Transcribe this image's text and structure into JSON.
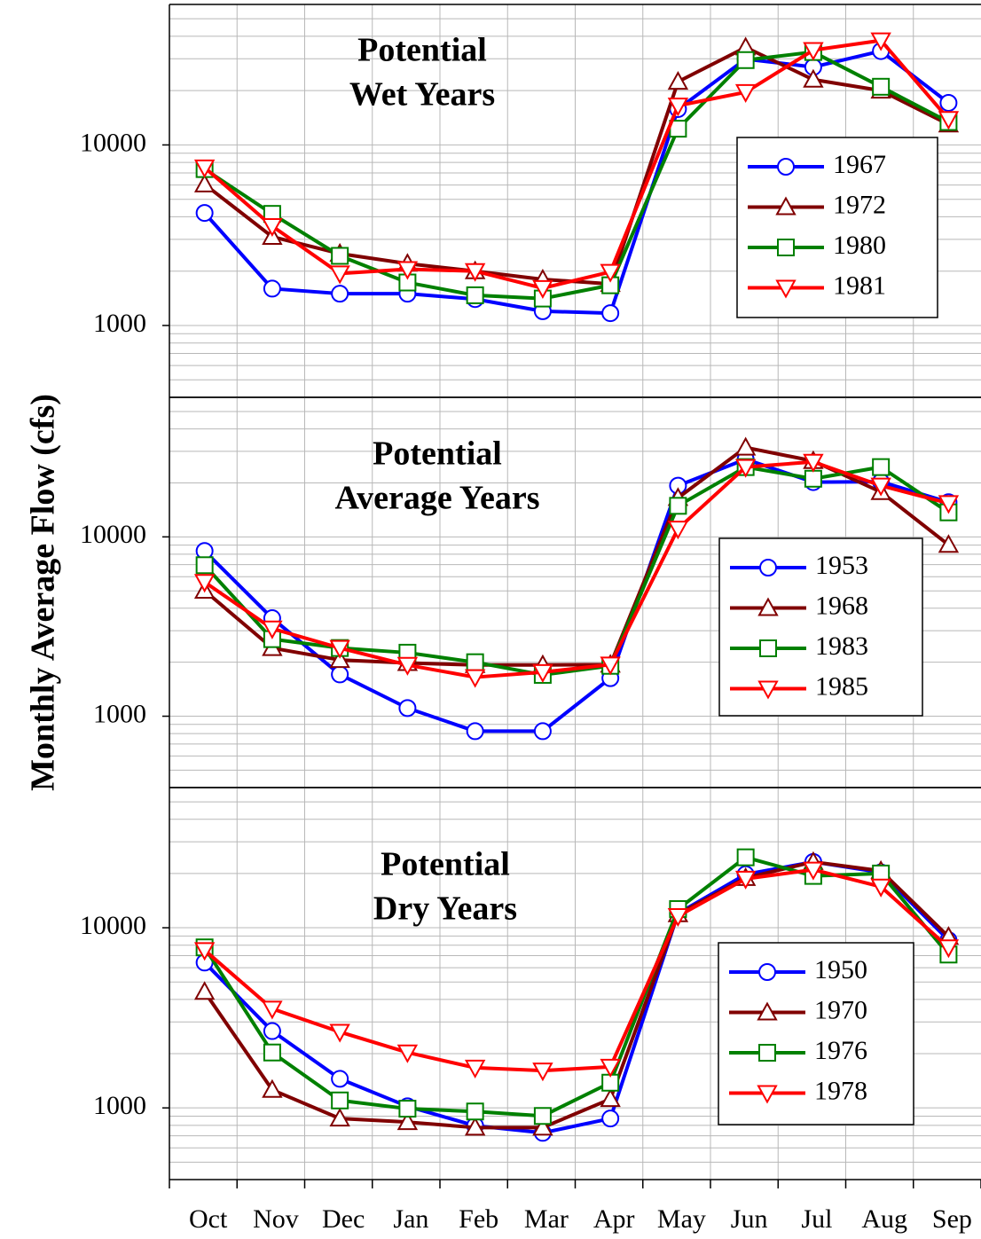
{
  "y_label": "Monthly Average Flow (cfs)",
  "chart_data": [
    {
      "type": "line",
      "title": [
        "Potential",
        "Wet Years"
      ],
      "log_scale": true,
      "grid": true,
      "ylim": [
        400,
        60000
      ],
      "yticks": [
        1000,
        10000
      ],
      "minor_yticks": [
        400,
        500,
        600,
        700,
        800,
        900,
        2000,
        3000,
        4000,
        5000,
        6000,
        7000,
        8000,
        9000,
        20000,
        30000,
        40000,
        50000
      ],
      "series": [
        {
          "name": "1967",
          "color": "#0000ff",
          "marker": "circle",
          "values": [
            4200,
            1600,
            1500,
            1500,
            1400,
            1200,
            1170,
            15800,
            29900,
            27000,
            33100,
            17100
          ]
        },
        {
          "name": "1972",
          "color": "#800000",
          "marker": "triangle-up",
          "values": [
            6050,
            3100,
            2500,
            2200,
            2000,
            1800,
            1700,
            22400,
            34700,
            23000,
            20000,
            13000
          ]
        },
        {
          "name": "1980",
          "color": "#008000",
          "marker": "square",
          "values": [
            7350,
            4150,
            2430,
            1730,
            1470,
            1410,
            1670,
            12300,
            29500,
            32700,
            21000,
            13400
          ]
        },
        {
          "name": "1981",
          "color": "#ff0000",
          "marker": "triangle-down",
          "values": [
            7500,
            3550,
            1940,
            2050,
            2000,
            1610,
            1980,
            16500,
            19600,
            33500,
            37900,
            13900
          ]
        }
      ]
    },
    {
      "type": "line",
      "title": [
        "Potential",
        "Average Years"
      ],
      "log_scale": true,
      "grid": true,
      "ylim": [
        400,
        60000
      ],
      "yticks": [
        1000,
        10000
      ],
      "minor_yticks": [
        400,
        500,
        600,
        700,
        800,
        900,
        2000,
        3000,
        4000,
        5000,
        6000,
        7000,
        8000,
        9000,
        20000,
        30000,
        40000,
        50000
      ],
      "series": [
        {
          "name": "1953",
          "color": "#0000ff",
          "marker": "circle",
          "values": [
            8340,
            3520,
            1710,
            1110,
            825,
            825,
            1630,
            19300,
            27100,
            20200,
            20300,
            15600
          ]
        },
        {
          "name": "1968",
          "color": "#800000",
          "marker": "triangle-up",
          "values": [
            5010,
            2400,
            2060,
            1980,
            1930,
            1930,
            1940,
            16500,
            31500,
            26500,
            17800,
            9030
          ]
        },
        {
          "name": "1983",
          "color": "#008000",
          "marker": "square",
          "values": [
            6950,
            2690,
            2400,
            2260,
            2000,
            1700,
            1910,
            14900,
            24500,
            21100,
            24500,
            13700
          ]
        },
        {
          "name": "1985",
          "color": "#ff0000",
          "marker": "triangle-down",
          "values": [
            5600,
            3080,
            2400,
            1930,
            1650,
            1760,
            1940,
            11100,
            24500,
            26200,
            19300,
            15400
          ]
        }
      ]
    },
    {
      "type": "line",
      "title": [
        "Potential",
        "Dry Years"
      ],
      "log_scale": true,
      "grid": true,
      "ylim": [
        400,
        60000
      ],
      "yticks": [
        1000,
        10000
      ],
      "minor_yticks": [
        400,
        500,
        600,
        700,
        800,
        900,
        2000,
        3000,
        4000,
        5000,
        6000,
        7000,
        8000,
        9000,
        20000,
        30000,
        40000,
        50000
      ],
      "categories": [
        "Oct",
        "Nov",
        "Dec",
        "Jan",
        "Feb",
        "Mar",
        "Apr",
        "May",
        "Jun",
        "Jul",
        "Aug",
        "Sep"
      ],
      "series": [
        {
          "name": "1950",
          "color": "#0000ff",
          "marker": "circle",
          "values": [
            6410,
            2670,
            1450,
            1020,
            796,
            727,
            873,
            12000,
            19800,
            23200,
            20300,
            8530
          ]
        },
        {
          "name": "1970",
          "color": "#800000",
          "marker": "triangle-up",
          "values": [
            4410,
            1260,
            873,
            834,
            778,
            778,
            1120,
            11900,
            18900,
            23200,
            20700,
            8920
          ]
        },
        {
          "name": "1976",
          "color": "#008000",
          "marker": "square",
          "values": [
            7780,
            2030,
            1100,
            990,
            955,
            902,
            1380,
            12700,
            24600,
            19400,
            20000,
            7100
          ]
        },
        {
          "name": "1978",
          "color": "#ff0000",
          "marker": "triangle-down",
          "values": [
            7510,
            3550,
            2640,
            2030,
            1670,
            1610,
            1690,
            11600,
            18700,
            21000,
            16900,
            7780
          ]
        }
      ]
    }
  ]
}
